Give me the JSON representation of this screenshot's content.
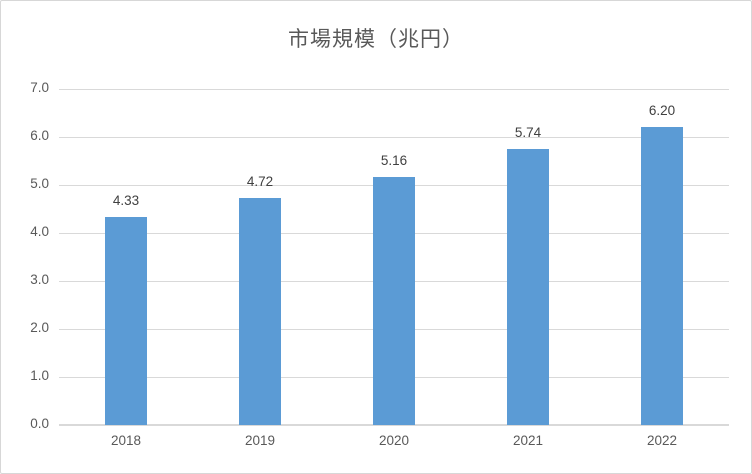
{
  "chart_title": "市場規模（兆円）",
  "chart_data": {
    "type": "bar",
    "title": "市場規模（兆円）",
    "categories": [
      "2018",
      "2019",
      "2020",
      "2021",
      "2022"
    ],
    "values": [
      4.33,
      4.72,
      5.16,
      5.74,
      6.2
    ],
    "value_labels": [
      "4.33",
      "4.72",
      "5.16",
      "5.74",
      "6.20"
    ],
    "xlabel": "",
    "ylabel": "",
    "ylim": [
      0.0,
      7.0
    ],
    "ytick_step": 1.0,
    "ytick_labels": [
      "0.0",
      "1.0",
      "2.0",
      "3.0",
      "4.0",
      "5.0",
      "6.0",
      "7.0"
    ],
    "grid": true,
    "legend": false
  },
  "colors": {
    "bar": "#5B9BD5",
    "gridline": "#D9D9D9",
    "axis_line": "#D9D9D9",
    "title_text": "#595959",
    "tick_text": "#595959",
    "data_label_text": "#404040",
    "frame_border": "#D7D7D7",
    "background": "#FFFFFF"
  }
}
